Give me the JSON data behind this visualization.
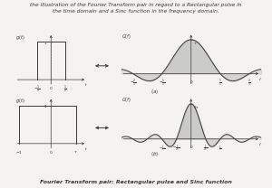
{
  "title_text": "the illustration of the Fourier Transform pair in regard to a Rectangular pulse in\nthe time domain and a Sinc function in the frequency domain.",
  "caption": "Fourier Transform pair: Rectangular pulse and Sinc function",
  "bg_color": "#f5f3ef",
  "line_color": "#3a3a3a",
  "fill_color": "#aaaaaa",
  "fill_alpha": 0.55,
  "title_fontsize": 4.2,
  "caption_fontsize": 4.5,
  "label_fontsize": 3.8,
  "tick_fontsize": 3.2,
  "sub_label_fontsize": 4.0
}
